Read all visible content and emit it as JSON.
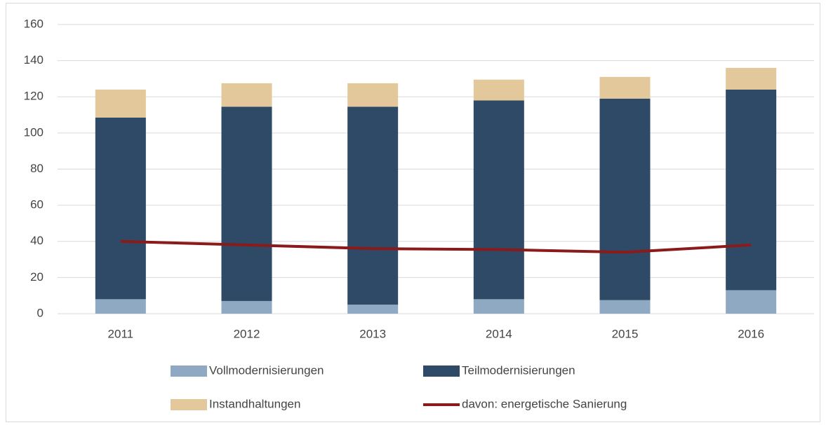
{
  "chart_data": {
    "type": "bar",
    "stacked": true,
    "categories": [
      "2011",
      "2012",
      "2013",
      "2014",
      "2015",
      "2016"
    ],
    "series": [
      {
        "name": "Vollmodernisierungen",
        "color": "#8ea9c1",
        "values": [
          8,
          7,
          5,
          8,
          7.5,
          13
        ]
      },
      {
        "name": "Teilmodernisierungen",
        "color": "#2e4a66",
        "values": [
          100.5,
          107.5,
          109.5,
          110,
          111.5,
          111
        ]
      },
      {
        "name": "Instandhaltungen",
        "color": "#e2c89a",
        "values": [
          15.5,
          13,
          13,
          11.5,
          12,
          12
        ]
      },
      {
        "name": "davon: energetische Sanierung",
        "color": "#8b1a1a",
        "type": "line",
        "values": [
          40,
          38,
          36,
          35.5,
          34,
          38
        ]
      }
    ],
    "ylim": [
      0,
      160
    ],
    "yticks": [
      0,
      20,
      40,
      60,
      80,
      100,
      120,
      140,
      160
    ],
    "grid": true,
    "legend": "bottom"
  }
}
